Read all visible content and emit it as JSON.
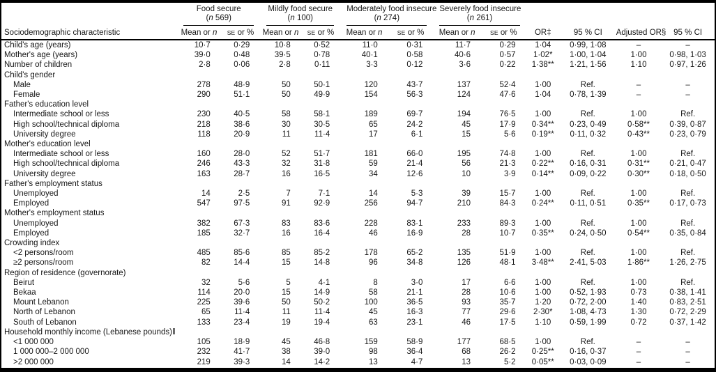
{
  "table": {
    "row_header": "Sociodemographic characteristic",
    "or_header": "OR‡",
    "ci_header": "95 % CI",
    "adjusted_or_header": "Adjusted OR§",
    "subcols": {
      "mean_prefix": "Mean or ",
      "mean_var": "n",
      "se_var": "se",
      "se_suffix": " or %"
    },
    "groups": [
      {
        "title": "Food secure",
        "n_label": "n",
        "n_value": "569"
      },
      {
        "title": "Mildly food secure",
        "n_label": "n",
        "n_value": "100"
      },
      {
        "title": "Moderately food insecure",
        "n_label": "n",
        "n_value": "274"
      },
      {
        "title": "Severely food insecure",
        "n_label": "n",
        "n_value": "261"
      }
    ],
    "rows": [
      {
        "label": "Child's age (years)",
        "indent": 0,
        "section": false,
        "cells": [
          "10·7",
          "0·29",
          "10·8",
          "0·52",
          "11·0",
          "0·31",
          "11·7",
          "0·29",
          "1·04",
          "0·99, 1·08",
          "–",
          "–"
        ]
      },
      {
        "label": "Mother's age (years)",
        "indent": 0,
        "section": false,
        "cells": [
          "39·0",
          "0·48",
          "39·5",
          "0·78",
          "40·1",
          "0·58",
          "40·6",
          "0·57",
          "1·02*",
          "1·00, 1·04",
          "1·00",
          "0·98, 1·03"
        ]
      },
      {
        "label": "Number of children",
        "indent": 0,
        "section": false,
        "cells": [
          "2·8",
          "0·06",
          "2·8",
          "0·11",
          "3·3",
          "0·12",
          "3·6",
          "0·22",
          "1·38**",
          "1·21, 1·56",
          "1·10",
          "0·97, 1·26"
        ]
      },
      {
        "label": "Child's gender",
        "indent": 0,
        "section": true,
        "cells": [
          "",
          "",
          "",
          "",
          "",
          "",
          "",
          "",
          "",
          "",
          "",
          ""
        ]
      },
      {
        "label": "Male",
        "indent": 1,
        "section": false,
        "cells": [
          "278",
          "48·9",
          "50",
          "50·1",
          "120",
          "43·7",
          "137",
          "52·4",
          "1·00",
          "Ref.",
          "–",
          "–"
        ]
      },
      {
        "label": "Female",
        "indent": 1,
        "section": false,
        "cells": [
          "290",
          "51·1",
          "50",
          "49·9",
          "154",
          "56·3",
          "124",
          "47·6",
          "1·04",
          "0·78, 1·39",
          "–",
          "–"
        ]
      },
      {
        "label": "Father's education level",
        "indent": 0,
        "section": true,
        "cells": [
          "",
          "",
          "",
          "",
          "",
          "",
          "",
          "",
          "",
          "",
          "",
          ""
        ]
      },
      {
        "label": "Intermediate school or less",
        "indent": 1,
        "section": false,
        "cells": [
          "230",
          "40·5",
          "58",
          "58·1",
          "189",
          "69·7",
          "194",
          "76·5",
          "1·00",
          "Ref.",
          "1·00",
          "Ref."
        ]
      },
      {
        "label": "High school/technical diploma",
        "indent": 1,
        "section": false,
        "cells": [
          "218",
          "38·6",
          "30",
          "30·5",
          "65",
          "24·2",
          "45",
          "17·9",
          "0·34**",
          "0·23, 0·49",
          "0·58**",
          "0·39, 0·87"
        ]
      },
      {
        "label": "University degree",
        "indent": 1,
        "section": false,
        "cells": [
          "118",
          "20·9",
          "11",
          "11·4",
          "17",
          "6·1",
          "15",
          "5·6",
          "0·19**",
          "0·11, 0·32",
          "0·43**",
          "0·23, 0·79"
        ]
      },
      {
        "label": "Mother's education level",
        "indent": 0,
        "section": true,
        "cells": [
          "",
          "",
          "",
          "",
          "",
          "",
          "",
          "",
          "",
          "",
          "",
          ""
        ]
      },
      {
        "label": "Intermediate school or less",
        "indent": 1,
        "section": false,
        "cells": [
          "160",
          "28·0",
          "52",
          "51·7",
          "181",
          "66·0",
          "195",
          "74·8",
          "1·00",
          "Ref.",
          "1·00",
          "Ref."
        ]
      },
      {
        "label": "High school/technical diploma",
        "indent": 1,
        "section": false,
        "cells": [
          "246",
          "43·3",
          "32",
          "31·8",
          "59",
          "21·4",
          "56",
          "21·3",
          "0·22**",
          "0·16, 0·31",
          "0·31**",
          "0·21, 0·47"
        ]
      },
      {
        "label": "University degree",
        "indent": 1,
        "section": false,
        "cells": [
          "163",
          "28·7",
          "16",
          "16·5",
          "34",
          "12·6",
          "10",
          "3·9",
          "0·14**",
          "0·09, 0·22",
          "0·30**",
          "0·18, 0·50"
        ]
      },
      {
        "label": "Father's employment status",
        "indent": 0,
        "section": true,
        "cells": [
          "",
          "",
          "",
          "",
          "",
          "",
          "",
          "",
          "",
          "",
          "",
          ""
        ]
      },
      {
        "label": "Unemployed",
        "indent": 1,
        "section": false,
        "cells": [
          "14",
          "2·5",
          "7",
          "7·1",
          "14",
          "5·3",
          "39",
          "15·7",
          "1·00",
          "Ref.",
          "1·00",
          "Ref."
        ]
      },
      {
        "label": "Employed",
        "indent": 1,
        "section": false,
        "cells": [
          "547",
          "97·5",
          "91",
          "92·9",
          "256",
          "94·7",
          "210",
          "84·3",
          "0·24**",
          "0·11, 0·51",
          "0·35**",
          "0·17, 0·73"
        ]
      },
      {
        "label": "Mother's employment status",
        "indent": 0,
        "section": true,
        "cells": [
          "",
          "",
          "",
          "",
          "",
          "",
          "",
          "",
          "",
          "",
          "",
          ""
        ]
      },
      {
        "label": "Unemployed",
        "indent": 1,
        "section": false,
        "cells": [
          "382",
          "67·3",
          "83",
          "83·6",
          "228",
          "83·1",
          "233",
          "89·3",
          "1·00",
          "Ref.",
          "1·00",
          "Ref."
        ]
      },
      {
        "label": "Employed",
        "indent": 1,
        "section": false,
        "cells": [
          "185",
          "32·7",
          "16",
          "16·4",
          "46",
          "16·9",
          "28",
          "10·7",
          "0·35**",
          "0·24, 0·50",
          "0·54**",
          "0·35, 0·84"
        ]
      },
      {
        "label": "Crowding index",
        "indent": 0,
        "section": true,
        "cells": [
          "",
          "",
          "",
          "",
          "",
          "",
          "",
          "",
          "",
          "",
          "",
          ""
        ]
      },
      {
        "label": "<2 persons/room",
        "indent": 1,
        "section": false,
        "cells": [
          "485",
          "85·6",
          "85",
          "85·2",
          "178",
          "65·2",
          "135",
          "51·9",
          "1·00",
          "Ref.",
          "1·00",
          "Ref."
        ]
      },
      {
        "label": "≥2 persons/room",
        "indent": 1,
        "section": false,
        "cells": [
          "82",
          "14·4",
          "15",
          "14·8",
          "96",
          "34·8",
          "126",
          "48·1",
          "3·48**",
          "2·41, 5·03",
          "1·86**",
          "1·26, 2·75"
        ]
      },
      {
        "label": "Region of residence (governorate)",
        "indent": 0,
        "section": true,
        "cells": [
          "",
          "",
          "",
          "",
          "",
          "",
          "",
          "",
          "",
          "",
          "",
          ""
        ]
      },
      {
        "label": "Beirut",
        "indent": 1,
        "section": false,
        "cells": [
          "32",
          "5·6",
          "5",
          "4·1",
          "8",
          "3·0",
          "17",
          "6·6",
          "1·00",
          "Ref.",
          "1·00",
          "Ref."
        ]
      },
      {
        "label": "Bekaa",
        "indent": 1,
        "section": false,
        "cells": [
          "114",
          "20·0",
          "15",
          "14·9",
          "58",
          "21·1",
          "28",
          "10·6",
          "1·00",
          "0·52, 1·93",
          "0·73",
          "0·38, 1·41"
        ]
      },
      {
        "label": "Mount Lebanon",
        "indent": 1,
        "section": false,
        "cells": [
          "225",
          "39·6",
          "50",
          "50·2",
          "100",
          "36·5",
          "93",
          "35·7",
          "1·20",
          "0·72, 2·00",
          "1·40",
          "0·83, 2·51"
        ]
      },
      {
        "label": "North of Lebanon",
        "indent": 1,
        "section": false,
        "cells": [
          "65",
          "11·4",
          "11",
          "11·4",
          "45",
          "16·3",
          "77",
          "29·6",
          "2·30*",
          "1·08, 4·73",
          "1·30",
          "0·72, 2·29"
        ]
      },
      {
        "label": "South of Lebanon",
        "indent": 1,
        "section": false,
        "cells": [
          "133",
          "23·4",
          "19",
          "19·4",
          "63",
          "23·1",
          "46",
          "17·5",
          "1·10",
          "0·59, 1·99",
          "0·72",
          "0·37, 1·42"
        ]
      },
      {
        "label": "Household monthly income (Lebanese pounds)‖",
        "indent": 0,
        "section": true,
        "cells": [
          "",
          "",
          "",
          "",
          "",
          "",
          "",
          "",
          "",
          "",
          "",
          ""
        ]
      },
      {
        "label": "<1 000 000",
        "indent": 1,
        "section": false,
        "cells": [
          "105",
          "18·9",
          "45",
          "46·8",
          "159",
          "58·9",
          "177",
          "68·5",
          "1·00",
          "Ref.",
          "–",
          "–"
        ]
      },
      {
        "label": "1 000 000–2 000 000",
        "indent": 1,
        "section": false,
        "cells": [
          "232",
          "41·7",
          "38",
          "39·0",
          "98",
          "36·4",
          "68",
          "26·2",
          "0·25**",
          "0·16, 0·37",
          "–",
          "–"
        ]
      },
      {
        "label": ">2 000 000",
        "indent": 1,
        "section": false,
        "cells": [
          "219",
          "39·3",
          "14",
          "14·2",
          "13",
          "4·7",
          "13",
          "5·2",
          "0·05**",
          "0·03, 0·09",
          "–",
          "–"
        ]
      }
    ]
  }
}
